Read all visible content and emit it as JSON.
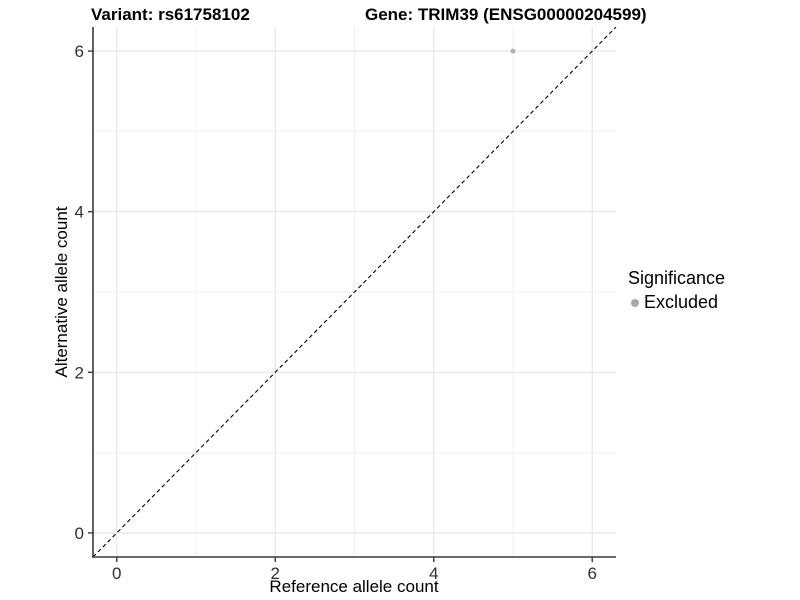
{
  "chart_data": {
    "type": "scatter",
    "title_left": "Variant: rs61758102",
    "title_right": "Gene: TRIM39 (ENSG00000204599)",
    "xlabel": "Reference allele count",
    "ylabel": "Alternative allele count",
    "xlim": [
      -0.3,
      6.3
    ],
    "ylim": [
      -0.3,
      6.3
    ],
    "x_ticks": [
      0,
      2,
      4,
      6
    ],
    "x_tick_labels": [
      "0",
      "2",
      "4",
      "6"
    ],
    "y_ticks": [
      0,
      2,
      4,
      6
    ],
    "y_tick_labels": [
      "0",
      "2",
      "4",
      "6"
    ],
    "x_minor": [
      1,
      3,
      5
    ],
    "y_minor": [
      1,
      3,
      5
    ],
    "grid": true,
    "points": [
      {
        "x": 5,
        "y": 6,
        "series": "Excluded"
      }
    ],
    "identity_line": {
      "style": "dashed",
      "color": "#000000",
      "from": -0.3,
      "to": 6.3
    },
    "legend": {
      "position": "right",
      "title": "Significance",
      "items": [
        {
          "label": "Excluded",
          "color": "#a9a9a9",
          "marker": "circle"
        }
      ]
    },
    "colors": {
      "point": "#b4b4b4",
      "grid_major": "#e6e6e6",
      "grid_minor": "#f0f0f0",
      "axis": "#3a3a3a",
      "tick_text": "#303030",
      "background": "#ffffff"
    }
  }
}
